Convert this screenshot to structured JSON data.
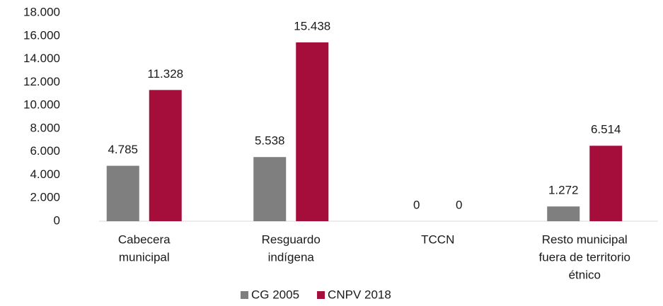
{
  "chart_data": {
    "type": "bar",
    "categories": [
      [
        "Cabecera",
        "municipal"
      ],
      [
        "Resguardo",
        "indígena"
      ],
      [
        "TCCN"
      ],
      [
        "Resto municipal",
        "fuera de territorio",
        "étnico"
      ]
    ],
    "series": [
      {
        "name": "CG 2005",
        "color": "#7f7f7f",
        "values": [
          4785,
          5538,
          0,
          1272
        ],
        "value_labels": [
          "4.785",
          "5.538",
          "0",
          "1.272"
        ]
      },
      {
        "name": "CNPV 2018",
        "color": "#a50d3a",
        "values": [
          11328,
          15438,
          0,
          6514
        ],
        "value_labels": [
          "11.328",
          "15.438",
          "0",
          "6.514"
        ]
      }
    ],
    "ylim": [
      0,
      18000
    ],
    "yticks": [
      0,
      {
        "value": 2000,
        "label": "2.000"
      },
      {
        "value": 4000,
        "label": "4.000"
      },
      {
        "value": 6000,
        "label": "6.000"
      },
      {
        "value": 8000,
        "label": "8.000"
      },
      {
        "value": 10000,
        "label": "10.000"
      },
      {
        "value": 12000,
        "label": "12.000"
      },
      {
        "value": 14000,
        "label": "14.000"
      },
      {
        "value": 16000,
        "label": "16.000"
      },
      {
        "value": 18000,
        "label": "18.000"
      }
    ],
    "grid": false
  }
}
